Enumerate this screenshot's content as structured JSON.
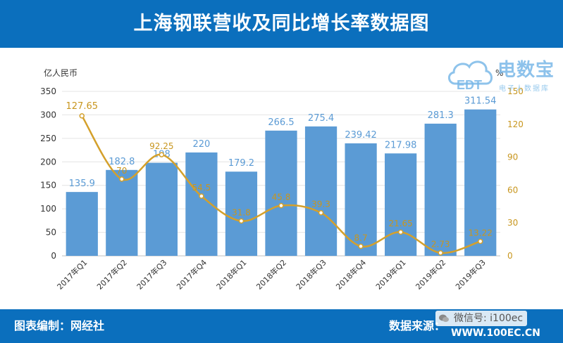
{
  "title": "上海钢联营收及同比增长率数据图",
  "footer": {
    "source_left": "图表编制：网经社",
    "source_right": "数据来源：",
    "wechat": "微信号: i100ec",
    "url": "WWW.100EC.CN"
  },
  "watermark": {
    "brand_cn": "电数宝",
    "brand_en": "EDT",
    "subtitle": "电子人数据库"
  },
  "colors": {
    "header": "#0b6fbd",
    "bar": "#5b9bd5",
    "line": "#d4a02b",
    "bar_label": "#5b9bd5",
    "line_label": "#c8961e"
  },
  "chart_data": {
    "type": "bar",
    "categories": [
      "2017年Q1",
      "2017年Q2",
      "2017年Q3",
      "2017年Q4",
      "2018年Q1",
      "2018年Q2",
      "2018年Q3",
      "2018年Q4",
      "2019年Q1",
      "2019年Q2",
      "2019年Q3"
    ],
    "series": [
      {
        "type": "bar",
        "axis": "left",
        "values": [
          135.9,
          182.8,
          198,
          220,
          179.2,
          266.5,
          275.4,
          239.42,
          217.98,
          281.3,
          311.54
        ],
        "labels": [
          "135.9",
          "182.8",
          "198",
          "220",
          "179.2",
          "266.5",
          "275.4",
          "239.42",
          "217.98",
          "281.3",
          "311.54"
        ]
      },
      {
        "type": "line",
        "axis": "right",
        "values": [
          127.65,
          70,
          92.25,
          54.5,
          31.8,
          45.8,
          39.3,
          8.7,
          21.65,
          2.73,
          13.22
        ],
        "labels": [
          "127.65",
          "70",
          "92.25",
          "54.5",
          "31.8",
          "45.8",
          "39.3",
          "8.7",
          "21.65",
          "2.73",
          "13.22"
        ]
      }
    ],
    "ylabel": "亿人民币",
    "y2label": "%",
    "ylim": [
      0,
      350
    ],
    "yticks": [
      "0",
      "50",
      "100",
      "150",
      "200",
      "250",
      "300",
      "350"
    ],
    "y2lim": [
      0,
      150
    ],
    "y2ticks": [
      "0",
      "30",
      "60",
      "90",
      "120",
      "150"
    ],
    "grid": true
  }
}
